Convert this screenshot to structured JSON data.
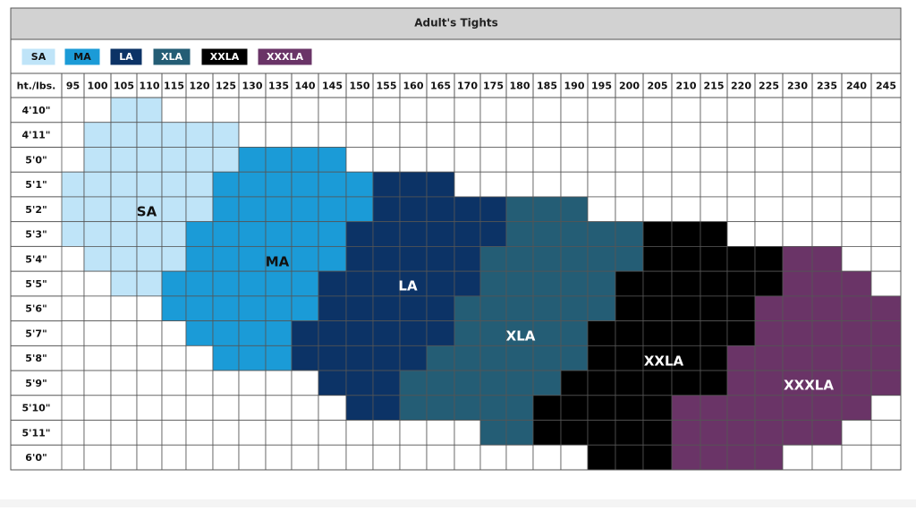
{
  "title": "Adult's Tights",
  "sizes": [
    {
      "label": "SA",
      "color": "#bfe4f8",
      "text_color": "#111111"
    },
    {
      "label": "MA",
      "color": "#1b9bd7",
      "text_color": "#111111"
    },
    {
      "label": "LA",
      "color": "#0c3366",
      "text_color": "#ffffff"
    },
    {
      "label": "XLA",
      "color": "#245d75",
      "text_color": "#ffffff"
    },
    {
      "label": "XXLA",
      "color": "#000000",
      "text_color": "#ffffff"
    },
    {
      "label": "XXXLA",
      "color": "#6a3467",
      "text_color": "#ffffff"
    }
  ],
  "corner": "ht./lbs.",
  "weights": [
    95,
    100,
    105,
    110,
    115,
    120,
    125,
    130,
    135,
    140,
    145,
    150,
    155,
    160,
    165,
    170,
    175,
    180,
    185,
    190,
    195,
    200,
    205,
    210,
    215,
    220,
    225,
    230,
    235,
    240,
    245
  ],
  "heights": [
    "4'10\"",
    "4'11\"",
    "5'0\"",
    "5'1\"",
    "5'2\"",
    "5'3\"",
    "5'4\"",
    "5'5\"",
    "5'6\"",
    "5'7\"",
    "5'8\"",
    "5'9\"",
    "5'10\"",
    "5'11\"",
    "6'0\""
  ],
  "cells": [
    [
      null,
      null,
      0,
      0,
      null,
      null,
      null,
      null,
      null,
      null,
      null,
      null,
      null,
      null,
      null,
      null,
      null,
      null,
      null,
      null,
      null,
      null,
      null,
      null,
      null,
      null,
      null,
      null,
      null,
      null,
      null
    ],
    [
      null,
      0,
      0,
      0,
      0,
      0,
      0,
      null,
      null,
      null,
      null,
      null,
      null,
      null,
      null,
      null,
      null,
      null,
      null,
      null,
      null,
      null,
      null,
      null,
      null,
      null,
      null,
      null,
      null,
      null,
      null
    ],
    [
      null,
      0,
      0,
      0,
      0,
      0,
      0,
      1,
      1,
      1,
      1,
      null,
      null,
      null,
      null,
      null,
      null,
      null,
      null,
      null,
      null,
      null,
      null,
      null,
      null,
      null,
      null,
      null,
      null,
      null,
      null
    ],
    [
      0,
      0,
      0,
      0,
      0,
      0,
      1,
      1,
      1,
      1,
      1,
      1,
      2,
      2,
      2,
      null,
      null,
      null,
      null,
      null,
      null,
      null,
      null,
      null,
      null,
      null,
      null,
      null,
      null,
      null,
      null
    ],
    [
      0,
      0,
      0,
      0,
      0,
      0,
      1,
      1,
      1,
      1,
      1,
      1,
      2,
      2,
      2,
      2,
      2,
      3,
      3,
      3,
      null,
      null,
      null,
      null,
      null,
      null,
      null,
      null,
      null,
      null,
      null
    ],
    [
      0,
      0,
      0,
      0,
      0,
      1,
      1,
      1,
      1,
      1,
      1,
      2,
      2,
      2,
      2,
      2,
      2,
      3,
      3,
      3,
      3,
      3,
      4,
      4,
      4,
      null,
      null,
      null,
      null,
      null,
      null
    ],
    [
      null,
      0,
      0,
      0,
      0,
      1,
      1,
      1,
      1,
      1,
      1,
      2,
      2,
      2,
      2,
      2,
      3,
      3,
      3,
      3,
      3,
      3,
      4,
      4,
      4,
      4,
      4,
      5,
      5,
      null,
      null
    ],
    [
      null,
      null,
      0,
      0,
      1,
      1,
      1,
      1,
      1,
      1,
      2,
      2,
      2,
      2,
      2,
      2,
      3,
      3,
      3,
      3,
      3,
      4,
      4,
      4,
      4,
      4,
      4,
      5,
      5,
      5,
      null
    ],
    [
      null,
      null,
      null,
      null,
      1,
      1,
      1,
      1,
      1,
      1,
      2,
      2,
      2,
      2,
      2,
      3,
      3,
      3,
      3,
      3,
      3,
      4,
      4,
      4,
      4,
      4,
      5,
      5,
      5,
      5,
      5
    ],
    [
      null,
      null,
      null,
      null,
      null,
      1,
      1,
      1,
      1,
      2,
      2,
      2,
      2,
      2,
      2,
      3,
      3,
      3,
      3,
      3,
      4,
      4,
      4,
      4,
      4,
      4,
      5,
      5,
      5,
      5,
      5
    ],
    [
      null,
      null,
      null,
      null,
      null,
      null,
      1,
      1,
      1,
      2,
      2,
      2,
      2,
      2,
      3,
      3,
      3,
      3,
      3,
      3,
      4,
      4,
      4,
      4,
      4,
      5,
      5,
      5,
      5,
      5,
      5
    ],
    [
      null,
      null,
      null,
      null,
      null,
      null,
      null,
      null,
      null,
      null,
      2,
      2,
      2,
      3,
      3,
      3,
      3,
      3,
      3,
      4,
      4,
      4,
      4,
      4,
      4,
      5,
      5,
      5,
      5,
      5,
      5
    ],
    [
      null,
      null,
      null,
      null,
      null,
      null,
      null,
      null,
      null,
      null,
      null,
      2,
      2,
      3,
      3,
      3,
      3,
      3,
      4,
      4,
      4,
      4,
      4,
      5,
      5,
      5,
      5,
      5,
      5,
      5,
      null
    ],
    [
      null,
      null,
      null,
      null,
      null,
      null,
      null,
      null,
      null,
      null,
      null,
      null,
      null,
      null,
      null,
      null,
      3,
      3,
      4,
      4,
      4,
      4,
      4,
      5,
      5,
      5,
      5,
      5,
      5,
      null,
      null
    ],
    [
      null,
      null,
      null,
      null,
      null,
      null,
      null,
      null,
      null,
      null,
      null,
      null,
      null,
      null,
      null,
      null,
      null,
      null,
      null,
      null,
      4,
      4,
      4,
      5,
      5,
      5,
      5,
      null,
      null,
      null,
      null
    ]
  ]
}
